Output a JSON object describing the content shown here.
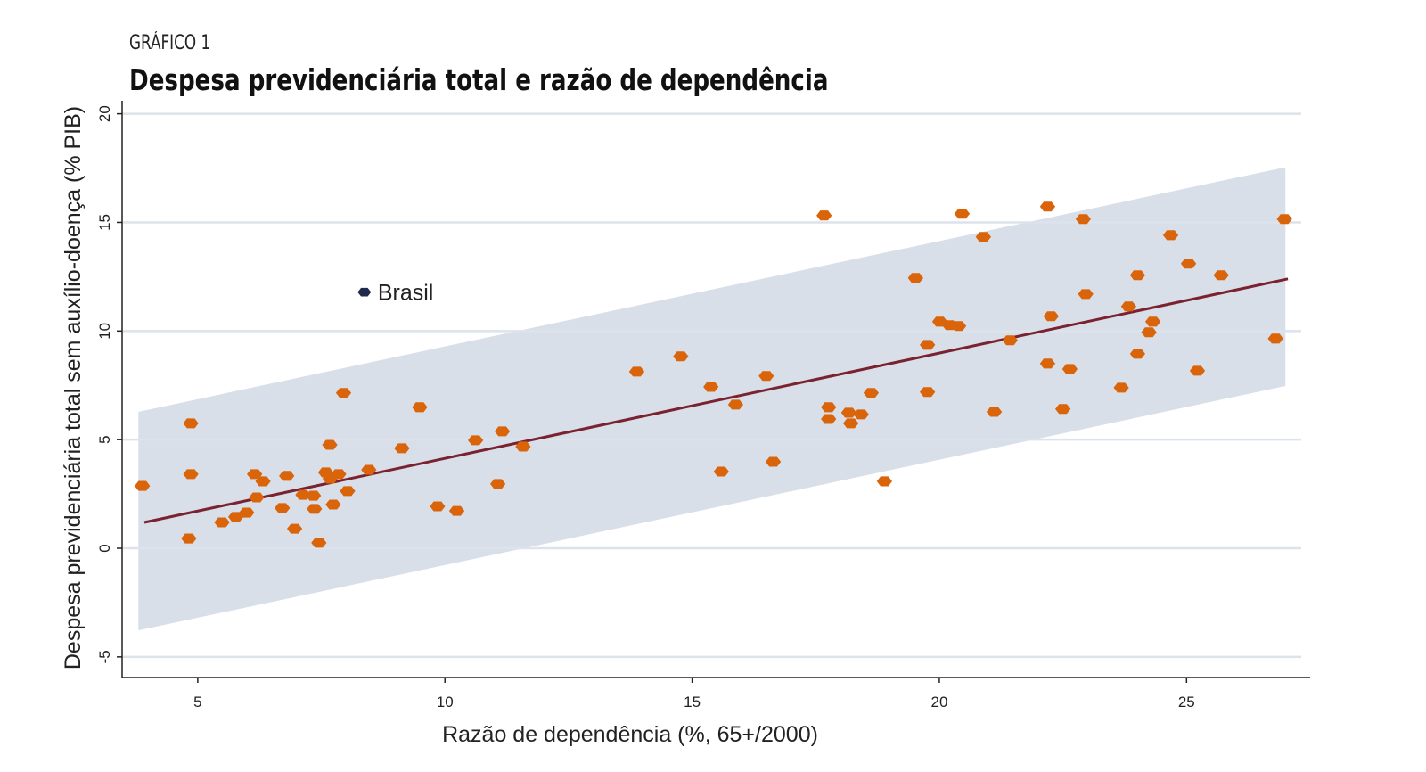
{
  "header": {
    "kicker": "GRÁFICO 1",
    "title": "Despesa previdenciária total e razão de dependência"
  },
  "chart_data": {
    "type": "scatter",
    "title": "Despesa previdenciária total e razão de dependência",
    "xlabel": "Razão de dependência (%, 65+/2000)",
    "ylabel": "Despesa previdenciária total sem auxílio-doença (% PIB)",
    "xlim": [
      3.47,
      27.5
    ],
    "ylim": [
      -5.95,
      20.6
    ],
    "xticks": [
      5,
      10,
      15,
      20,
      25
    ],
    "yticks": [
      -5,
      0,
      5,
      10,
      15,
      20
    ],
    "grid": "horizontal",
    "colors": {
      "points": "#d9640a",
      "highlight": "#1f2a4d",
      "fit": "#7a2230",
      "band": "#d8dfe9",
      "grid": "#dde3ec"
    },
    "points": [
      [
        3.88,
        2.87
      ],
      [
        4.86,
        5.75
      ],
      [
        4.86,
        3.41
      ],
      [
        4.82,
        0.45
      ],
      [
        5.49,
        1.19
      ],
      [
        5.77,
        1.44
      ],
      [
        5.99,
        1.64
      ],
      [
        6.15,
        3.41
      ],
      [
        6.32,
        3.08
      ],
      [
        6.19,
        2.34
      ],
      [
        6.71,
        1.85
      ],
      [
        6.8,
        3.33
      ],
      [
        6.96,
        0.9
      ],
      [
        7.13,
        2.46
      ],
      [
        7.34,
        2.42
      ],
      [
        7.36,
        1.81
      ],
      [
        7.45,
        0.25
      ],
      [
        7.59,
        3.49
      ],
      [
        7.67,
        4.76
      ],
      [
        7.68,
        3.2
      ],
      [
        7.74,
        2.01
      ],
      [
        7.85,
        3.41
      ],
      [
        7.95,
        7.15
      ],
      [
        8.03,
        2.63
      ],
      [
        8.46,
        3.61
      ],
      [
        9.13,
        4.6
      ],
      [
        9.49,
        6.49
      ],
      [
        9.85,
        1.93
      ],
      [
        10.24,
        1.72
      ],
      [
        10.62,
        4.97
      ],
      [
        11.07,
        2.96
      ],
      [
        11.16,
        5.38
      ],
      [
        11.58,
        4.68
      ],
      [
        13.88,
        8.13
      ],
      [
        14.77,
        8.83
      ],
      [
        15.38,
        7.43
      ],
      [
        15.59,
        3.53
      ],
      [
        15.88,
        6.61
      ],
      [
        16.5,
        7.93
      ],
      [
        16.64,
        3.98
      ],
      [
        17.67,
        15.32
      ],
      [
        17.76,
        6.49
      ],
      [
        17.76,
        5.95
      ],
      [
        18.17,
        6.24
      ],
      [
        18.21,
        5.75
      ],
      [
        18.42,
        6.16
      ],
      [
        18.62,
        7.15
      ],
      [
        18.89,
        3.08
      ],
      [
        19.52,
        12.44
      ],
      [
        19.76,
        9.36
      ],
      [
        19.76,
        7.19
      ],
      [
        20.01,
        10.43
      ],
      [
        20.21,
        10.27
      ],
      [
        20.39,
        10.23
      ],
      [
        20.46,
        15.4
      ],
      [
        20.89,
        14.33
      ],
      [
        21.11,
        6.28
      ],
      [
        21.43,
        9.57
      ],
      [
        22.19,
        15.73
      ],
      [
        22.19,
        8.5
      ],
      [
        22.26,
        10.68
      ],
      [
        22.5,
        6.41
      ],
      [
        22.64,
        8.25
      ],
      [
        22.91,
        15.15
      ],
      [
        22.96,
        11.7
      ],
      [
        23.68,
        7.39
      ],
      [
        23.83,
        11.13
      ],
      [
        24.01,
        12.57
      ],
      [
        24.01,
        8.95
      ],
      [
        24.24,
        9.94
      ],
      [
        24.32,
        10.43
      ],
      [
        24.68,
        14.41
      ],
      [
        25.04,
        13.1
      ],
      [
        25.22,
        8.17
      ],
      [
        25.7,
        12.57
      ],
      [
        26.8,
        9.65
      ],
      [
        26.98,
        15.15
      ]
    ],
    "highlight": {
      "label": "Brasil",
      "x": 8.37,
      "y": 11.79
    },
    "fit_line": {
      "x": [
        3.92,
        27.05
      ],
      "y": [
        1.19,
        12.4
      ]
    },
    "band": {
      "x": [
        3.8,
        27.0
      ],
      "upper": [
        6.28,
        17.54
      ],
      "lower": [
        -3.78,
        7.47
      ]
    }
  }
}
